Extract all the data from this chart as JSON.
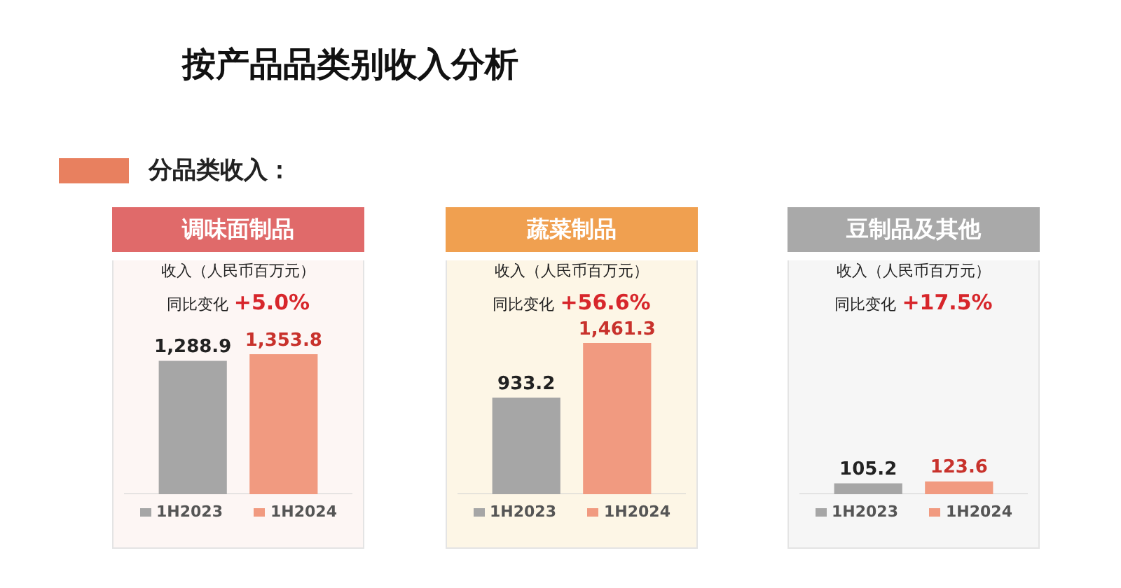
{
  "chart_data": [
    {
      "type": "other",
      "title": "按产品品类别收入分析",
      "annotations": [
        "分品类收入："
      ]
    },
    {
      "type": "bar",
      "title": "调味面制品",
      "subtitle": "收入（人民币百万元）",
      "annotations": [
        "同比变化",
        "+5.0%"
      ],
      "categories": [
        null
      ],
      "legend": "bottom",
      "series": [
        {
          "name": "1H2023",
          "color": "#a6a6a6",
          "values": [
            1288.9
          ],
          "value_labels": [
            "1,288.9"
          ]
        },
        {
          "name": "1H2024",
          "color": "#f19a80",
          "values": [
            1353.8
          ],
          "value_labels": [
            "1,353.8"
          ]
        }
      ]
    },
    {
      "type": "bar",
      "title": "蔬菜制品",
      "subtitle": "收入（人民币百万元）",
      "annotations": [
        "同比变化",
        "+56.6%"
      ],
      "categories": [
        null
      ],
      "legend": "bottom",
      "series": [
        {
          "name": "1H2023",
          "color": "#a6a6a6",
          "values": [
            933.2
          ],
          "value_labels": [
            "933.2"
          ]
        },
        {
          "name": "1H2024",
          "color": "#f19a80",
          "values": [
            1461.3
          ],
          "value_labels": [
            "1,461.3"
          ]
        }
      ]
    },
    {
      "type": "bar",
      "title": "豆制品及其他",
      "subtitle": "收入（人民币百万元）",
      "annotations": [
        "同比变化",
        "+17.5%"
      ],
      "categories": [
        null
      ],
      "legend": "bottom",
      "series": [
        {
          "name": "1H2023",
          "color": "#a6a6a6",
          "values": [
            105.2
          ],
          "value_labels": [
            "105.2"
          ]
        },
        {
          "name": "1H2024",
          "color": "#f19a80",
          "values": [
            123.6
          ],
          "value_labels": [
            "123.6"
          ]
        }
      ]
    }
  ]
}
